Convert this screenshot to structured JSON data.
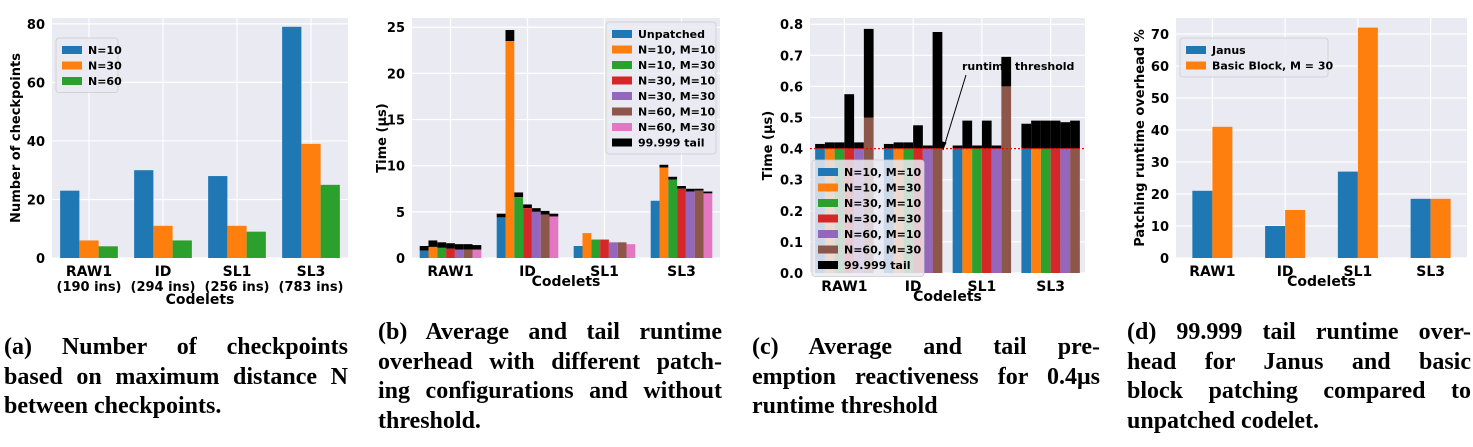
{
  "colors": {
    "blue": "#1f77b4",
    "orange": "#ff7f0e",
    "green": "#2ca02c",
    "red": "#d62728",
    "purple": "#9467bd",
    "brown": "#8c564b",
    "pink": "#e377c2",
    "black": "#000000",
    "grid": "#ffffff",
    "plot_bg": "#eaeaf2",
    "threshold": "#ff0000"
  },
  "chart_data": [
    {
      "id": "a",
      "type": "bar",
      "title": "",
      "xlabel": "Codelets",
      "ylabel": "Number of checkpoints",
      "categories": [
        "RAW1",
        "ID",
        "SL1",
        "SL3"
      ],
      "category_sublabels": [
        "(190 ins)",
        "(294 ins)",
        "(256 ins)",
        "(783 ins)"
      ],
      "ylim": [
        0,
        82
      ],
      "yticks": [
        0,
        20,
        40,
        60,
        80
      ],
      "legend_position": "top-left",
      "series": [
        {
          "name": "N=10",
          "color_key": "blue",
          "values": [
            23,
            30,
            28,
            79
          ]
        },
        {
          "name": "N=30",
          "color_key": "orange",
          "values": [
            6,
            11,
            11,
            39
          ]
        },
        {
          "name": "N=60",
          "color_key": "green",
          "values": [
            4,
            6,
            9,
            25
          ]
        }
      ],
      "caption": [
        "(a) Number of checkpoints",
        "based on maximum distance N",
        "between checkpoints."
      ]
    },
    {
      "id": "b",
      "type": "bar",
      "title": "",
      "xlabel": "Codelets",
      "ylabel": "Time (μs)",
      "categories": [
        "RAW1",
        "ID",
        "SL1",
        "SL3"
      ],
      "ylim": [
        0,
        26
      ],
      "yticks": [
        0,
        5,
        10,
        15,
        20,
        25
      ],
      "legend_position": "top-right",
      "legend": [
        "Unpatched",
        "N=10, M=10",
        "N=10, M=30",
        "N=30, M=10",
        "N=30, M=30",
        "N=60, M=10",
        "N=60, M=30",
        "99.999 tail"
      ],
      "series": [
        {
          "name": "Unpatched",
          "color_key": "blue",
          "values": [
            0.8,
            4.4,
            1.3,
            6.2
          ],
          "tail": [
            1.3,
            4.8,
            null,
            null
          ]
        },
        {
          "name": "N=10, M=10",
          "color_key": "orange",
          "values": [
            1.2,
            23.5,
            2.7,
            9.8
          ],
          "tail": [
            1.9,
            24.7,
            null,
            10.1
          ]
        },
        {
          "name": "N=10, M=30",
          "color_key": "green",
          "values": [
            1.1,
            6.6,
            2.0,
            8.5
          ],
          "tail": [
            1.7,
            7.1,
            null,
            8.8
          ]
        },
        {
          "name": "N=30, M=10",
          "color_key": "red",
          "values": [
            1.0,
            5.4,
            2.0,
            7.5
          ],
          "tail": [
            1.6,
            5.8,
            null,
            7.8
          ]
        },
        {
          "name": "N=30, M=30",
          "color_key": "purple",
          "values": [
            0.9,
            5.0,
            1.7,
            7.2
          ],
          "tail": [
            1.5,
            5.4,
            null,
            7.5
          ]
        },
        {
          "name": "N=60, M=10",
          "color_key": "brown",
          "values": [
            0.9,
            4.7,
            1.7,
            7.3
          ],
          "tail": [
            1.5,
            5.1,
            null,
            7.5
          ]
        },
        {
          "name": "N=60, M=30",
          "color_key": "pink",
          "values": [
            0.9,
            4.5,
            1.5,
            7.0
          ],
          "tail": [
            1.4,
            4.8,
            null,
            7.2
          ]
        }
      ],
      "caption": [
        "(b) Average and tail runtime",
        "overhead with different patch-",
        "ing configurations and without",
        "threshold."
      ]
    },
    {
      "id": "c",
      "type": "bar",
      "title": "",
      "xlabel": "Codelets",
      "ylabel": "Time (μs)",
      "categories": [
        "RAW1",
        "ID",
        "SL1",
        "SL3"
      ],
      "ylim": [
        0,
        0.82
      ],
      "yticks": [
        0.0,
        0.1,
        0.2,
        0.3,
        0.4,
        0.5,
        0.6,
        0.7,
        0.8
      ],
      "ytick_labels": [
        "0.0",
        "0.1",
        "0.2",
        "0.3",
        "0.4",
        "0.5",
        "0.6",
        "0.7",
        "0.8"
      ],
      "threshold": 0.4,
      "annotation": "runtime threshold",
      "legend_position": "bottom-left",
      "legend": [
        "N=10, M=10",
        "N=10, M=30",
        "N=30, M=10",
        "N=30, M=30",
        "N=60, M=10",
        "N=60, M=30",
        "99.999 tail"
      ],
      "series": [
        {
          "name": "N=10, M=10",
          "color_key": "blue",
          "values": [
            0.4,
            0.4,
            0.4,
            0.4
          ],
          "tail": [
            0.415,
            0.415,
            0.41,
            0.48
          ]
        },
        {
          "name": "N=10, M=30",
          "color_key": "orange",
          "values": [
            0.4,
            0.4,
            0.4,
            0.4
          ],
          "tail": [
            0.42,
            0.42,
            0.49,
            0.49
          ]
        },
        {
          "name": "N=30, M=10",
          "color_key": "green",
          "values": [
            0.4,
            0.4,
            0.4,
            0.4
          ],
          "tail": [
            0.42,
            0.42,
            0.41,
            0.49
          ]
        },
        {
          "name": "N=30, M=30",
          "color_key": "red",
          "values": [
            0.4,
            0.4,
            0.4,
            0.4
          ],
          "tail": [
            0.575,
            0.475,
            0.49,
            0.49
          ]
        },
        {
          "name": "N=60, M=10",
          "color_key": "purple",
          "values": [
            0.4,
            0.4,
            0.4,
            0.4
          ],
          "tail": [
            0.42,
            0.41,
            0.41,
            0.485
          ]
        },
        {
          "name": "N=60, M=30",
          "color_key": "brown",
          "values": [
            0.5,
            0.4,
            0.6,
            0.4
          ],
          "tail": [
            0.785,
            0.775,
            0.695,
            0.49
          ]
        }
      ],
      "caption": [
        "(c) Average and tail pre-",
        "emption reactiveness for 0.4μs",
        "runtime threshold"
      ]
    },
    {
      "id": "d",
      "type": "bar",
      "title": "",
      "xlabel": "Codelets",
      "ylabel": "Patching runtime overhead %",
      "categories": [
        "RAW1",
        "ID",
        "SL1",
        "SL3"
      ],
      "ylim": [
        0,
        75
      ],
      "yticks": [
        0,
        10,
        20,
        30,
        40,
        50,
        60,
        70
      ],
      "legend_position": "top-left",
      "series": [
        {
          "name": "Janus",
          "color_key": "blue",
          "values": [
            21,
            10,
            27,
            18.5
          ]
        },
        {
          "name": "Basic Block, M = 30",
          "color_key": "orange",
          "values": [
            41,
            15,
            72,
            18.5
          ]
        }
      ],
      "caption": [
        "(d) 99.999 tail runtime over-",
        "head for Janus and basic",
        "block patching compared to",
        "unpatched codelet."
      ]
    }
  ]
}
